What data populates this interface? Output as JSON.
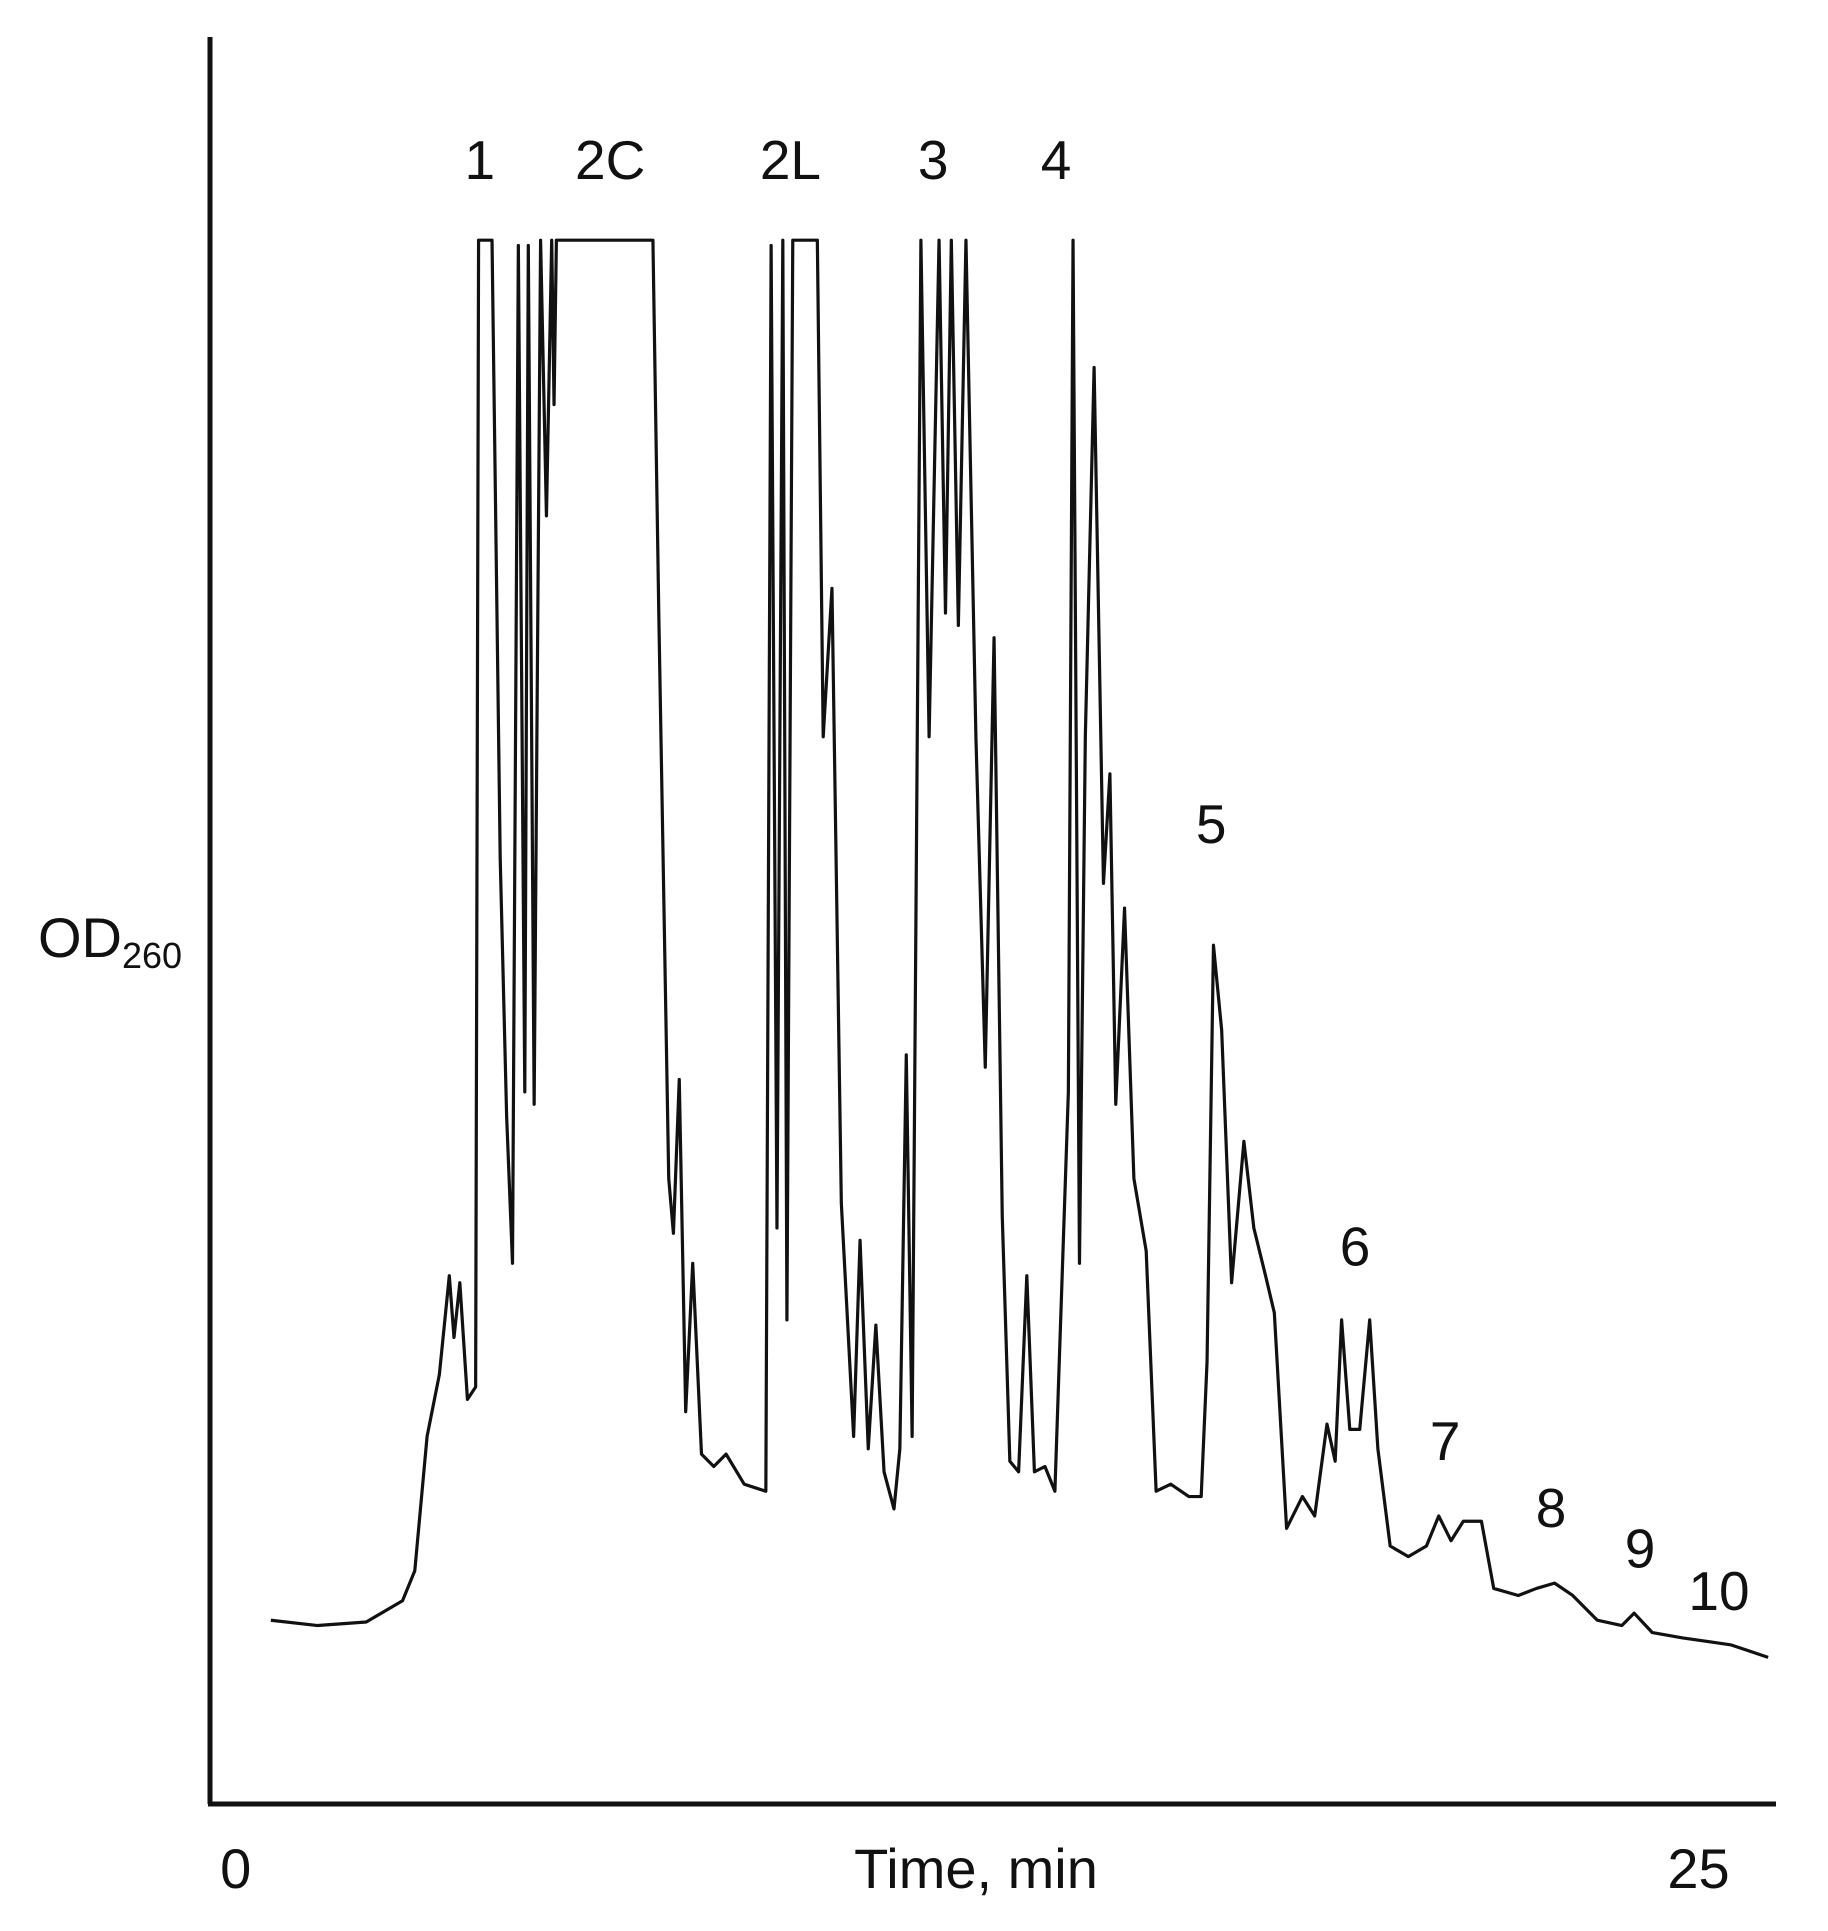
{
  "chart_data": {
    "type": "line",
    "xlabel": "Time, min",
    "ylabel": "OD",
    "ylabel_subscript": "260",
    "xlim": [
      -0.44,
      26.29
    ],
    "xticks": [
      0,
      25
    ],
    "ylim": [
      0,
      100
    ],
    "color": "#111111",
    "x": [
      0.6,
      1.4,
      2.23,
      2.85,
      3.06,
      3.27,
      3.48,
      3.65,
      3.73,
      3.83,
      3.96,
      4.1,
      4.15,
      4.38,
      4.52,
      4.63,
      4.73,
      4.83,
      4.94,
      5.0,
      5.1,
      5.21,
      5.31,
      5.4,
      5.44,
      5.48,
      7.13,
      7.23,
      7.4,
      7.48,
      7.58,
      7.69,
      7.81,
      7.96,
      8.17,
      8.38,
      8.69,
      9.06,
      9.15,
      9.25,
      9.35,
      9.42,
      9.52,
      9.94,
      10.04,
      10.19,
      10.35,
      10.56,
      10.67,
      10.81,
      10.94,
      11.08,
      11.25,
      11.35,
      11.46,
      11.56,
      11.71,
      11.85,
      12.02,
      12.13,
      12.23,
      12.35,
      12.48,
      12.65,
      12.81,
      12.96,
      13.1,
      13.23,
      13.38,
      13.52,
      13.65,
      13.83,
      14.0,
      14.23,
      14.31,
      14.42,
      14.52,
      14.67,
      14.83,
      14.94,
      15.04,
      15.19,
      15.35,
      15.56,
      15.73,
      15.98,
      16.29,
      16.5,
      16.6,
      16.71,
      16.85,
      17.02,
      17.23,
      17.4,
      17.6,
      17.75,
      17.96,
      18.23,
      18.44,
      18.65,
      18.79,
      18.9,
      19.04,
      19.21,
      19.38,
      19.52,
      19.73,
      20.04,
      20.35,
      20.56,
      20.77,
      20.98,
      21.29,
      21.5,
      21.92,
      22.23,
      22.54,
      22.85,
      23.27,
      23.69,
      23.9,
      24.21,
      24.73,
      25.15,
      25.56,
      26.19
    ],
    "values": [
      10.4,
      10.1,
      10.3,
      11.5,
      13.2,
      20.8,
      24.3,
      29.9,
      26.4,
      29.5,
      22.9,
      23.6,
      88.5,
      88.5,
      53.5,
      38.9,
      30.6,
      88.2,
      40.3,
      88.2,
      39.6,
      88.5,
      72.9,
      88.5,
      79.2,
      88.5,
      88.5,
      67.4,
      35.4,
      32.3,
      41.0,
      22.2,
      30.6,
      19.8,
      19.1,
      19.8,
      18.1,
      17.7,
      88.2,
      32.6,
      88.5,
      27.4,
      88.5,
      88.5,
      60.4,
      68.8,
      34.0,
      20.8,
      31.9,
      20.1,
      27.1,
      18.8,
      16.7,
      20.1,
      42.4,
      20.8,
      88.5,
      60.4,
      88.5,
      67.4,
      88.5,
      66.7,
      88.5,
      60.4,
      41.7,
      66.0,
      33.3,
      19.4,
      18.8,
      29.9,
      18.8,
      19.1,
      17.7,
      40.3,
      88.5,
      30.6,
      60.4,
      81.3,
      52.1,
      58.3,
      39.6,
      50.7,
      35.4,
      31.3,
      17.7,
      18.1,
      17.4,
      17.4,
      25.0,
      48.6,
      43.8,
      29.5,
      37.5,
      32.6,
      29.9,
      27.8,
      15.6,
      17.4,
      16.3,
      21.5,
      19.4,
      27.4,
      21.2,
      21.2,
      27.4,
      20.1,
      14.6,
      14.0,
      14.6,
      16.3,
      14.9,
      16.0,
      16.0,
      12.2,
      11.8,
      12.2,
      12.5,
      11.8,
      10.4,
      10.1,
      10.8,
      9.7,
      9.4,
      9.2,
      9.0,
      8.3
    ],
    "annotations": [
      {
        "text": "1",
        "x": 4.17,
        "y": 92.8
      },
      {
        "text": "2C",
        "x": 6.4,
        "y": 92.8
      },
      {
        "text": "2L",
        "x": 9.48,
        "y": 92.8
      },
      {
        "text": "3",
        "x": 11.92,
        "y": 92.8
      },
      {
        "text": "4",
        "x": 14.02,
        "y": 92.8
      },
      {
        "text": "5",
        "x": 16.67,
        "y": 55.2
      },
      {
        "text": "6",
        "x": 19.13,
        "y": 31.3
      },
      {
        "text": "7",
        "x": 20.67,
        "y": 20.3
      },
      {
        "text": "8",
        "x": 22.48,
        "y": 16.5
      },
      {
        "text": "9",
        "x": 24.0,
        "y": 14.2
      },
      {
        "text": "10",
        "x": 25.35,
        "y": 11.8
      }
    ]
  }
}
